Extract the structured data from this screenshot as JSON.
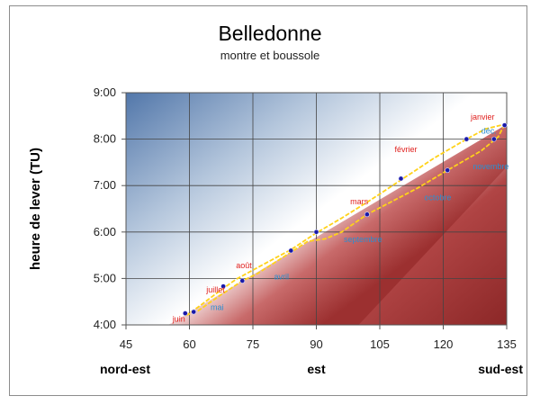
{
  "chart_data": {
    "type": "scatter",
    "title": "Belledonne",
    "subtitle": "montre et boussole",
    "xlabel": "",
    "ylabel": "heure de lever (TU)",
    "xlim": [
      45,
      135
    ],
    "ylim": [
      4,
      9
    ],
    "x_ticks": [
      45,
      60,
      75,
      90,
      105,
      120,
      135
    ],
    "y_ticks": [
      {
        "value": 4,
        "label": "4:00"
      },
      {
        "value": 5,
        "label": "5:00"
      },
      {
        "value": 6,
        "label": "6:00"
      },
      {
        "value": 7,
        "label": "7:00"
      },
      {
        "value": 8,
        "label": "8:00"
      },
      {
        "value": 9,
        "label": "9:00"
      }
    ],
    "direction_labels": [
      {
        "x": 45,
        "label": "nord-est"
      },
      {
        "x": 90,
        "label": "est"
      },
      {
        "x": 135,
        "label": "sud-est"
      }
    ],
    "grid": true,
    "colors": {
      "points": "#1a1aa8",
      "curve": "#ffd21a",
      "label_first_half": "#e0201e",
      "label_second_half": "#2c8fd0",
      "shade_dark": "#a83838",
      "shade_light": "#4a72a8"
    },
    "points": [
      {
        "x": 59,
        "y": 4.25
      },
      {
        "x": 61,
        "y": 4.28
      },
      {
        "x": 68,
        "y": 4.83
      },
      {
        "x": 72.5,
        "y": 4.95
      },
      {
        "x": 84,
        "y": 5.6
      },
      {
        "x": 90,
        "y": 6.0
      },
      {
        "x": 102,
        "y": 6.38
      },
      {
        "x": 110,
        "y": 7.15
      },
      {
        "x": 121,
        "y": 7.33
      },
      {
        "x": 125.5,
        "y": 8.0
      },
      {
        "x": 132,
        "y": 8.0
      },
      {
        "x": 134.5,
        "y": 8.3
      }
    ],
    "curve_rising": [
      {
        "x": 59,
        "y": 4.2
      },
      {
        "x": 62,
        "y": 4.38
      },
      {
        "x": 67,
        "y": 4.72
      },
      {
        "x": 71,
        "y": 4.98
      },
      {
        "x": 77,
        "y": 5.28
      },
      {
        "x": 84,
        "y": 5.62
      },
      {
        "x": 90,
        "y": 5.98
      },
      {
        "x": 96,
        "y": 6.3
      },
      {
        "x": 103,
        "y": 6.7
      },
      {
        "x": 110,
        "y": 7.12
      },
      {
        "x": 118,
        "y": 7.6
      },
      {
        "x": 125.5,
        "y": 8.0
      },
      {
        "x": 130,
        "y": 8.22
      },
      {
        "x": 134.5,
        "y": 8.32
      }
    ],
    "curve_setting": [
      {
        "x": 134.5,
        "y": 8.32
      },
      {
        "x": 133,
        "y": 8.05
      },
      {
        "x": 129,
        "y": 7.75
      },
      {
        "x": 121,
        "y": 7.33
      },
      {
        "x": 114,
        "y": 6.95
      },
      {
        "x": 102,
        "y": 6.38
      },
      {
        "x": 96,
        "y": 6.0
      },
      {
        "x": 92,
        "y": 5.85
      },
      {
        "x": 88,
        "y": 5.8
      },
      {
        "x": 82,
        "y": 5.45
      },
      {
        "x": 76,
        "y": 5.1
      },
      {
        "x": 72.5,
        "y": 4.95
      },
      {
        "x": 67,
        "y": 4.62
      },
      {
        "x": 62,
        "y": 4.3
      },
      {
        "x": 59,
        "y": 4.2
      }
    ],
    "annotations": [
      {
        "text": "janvier",
        "x": 126.5,
        "y": 8.42,
        "group": "first"
      },
      {
        "text": "déc.",
        "x": 129,
        "y": 8.12,
        "group": "second"
      },
      {
        "text": "février",
        "x": 108.5,
        "y": 7.72,
        "group": "first"
      },
      {
        "text": "novembre",
        "x": 127,
        "y": 7.35,
        "group": "second"
      },
      {
        "text": "mars",
        "x": 98,
        "y": 6.6,
        "group": "first"
      },
      {
        "text": "octobre",
        "x": 115.5,
        "y": 6.68,
        "group": "second"
      },
      {
        "text": "septembre",
        "x": 96.5,
        "y": 5.78,
        "group": "second"
      },
      {
        "text": "août",
        "x": 71,
        "y": 5.22,
        "group": "first"
      },
      {
        "text": "avril",
        "x": 80,
        "y": 4.98,
        "group": "second"
      },
      {
        "text": "juillet",
        "x": 64,
        "y": 4.7,
        "group": "first"
      },
      {
        "text": "mai",
        "x": 65,
        "y": 4.32,
        "group": "second"
      },
      {
        "text": "juin",
        "x": 56,
        "y": 4.07,
        "group": "first"
      }
    ]
  }
}
